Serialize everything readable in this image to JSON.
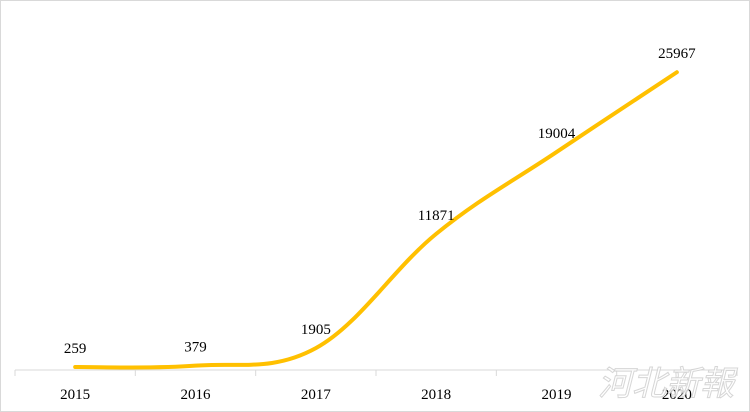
{
  "chart_data": {
    "type": "line",
    "categories": [
      "2015",
      "2016",
      "2017",
      "2018",
      "2019",
      "2020"
    ],
    "values": [
      259,
      379,
      1905,
      11871,
      19004,
      25967
    ],
    "data_labels": [
      "259",
      "379",
      "1905",
      "11871",
      "19004",
      "25967"
    ],
    "title": "",
    "xlabel": "",
    "ylabel": "",
    "ylim": [
      0,
      30000
    ],
    "grid": false,
    "smooth": true
  },
  "colors": {
    "line": "#FFC000",
    "axis": "#d9d9d9"
  },
  "watermark": {
    "text": "河北新報"
  }
}
